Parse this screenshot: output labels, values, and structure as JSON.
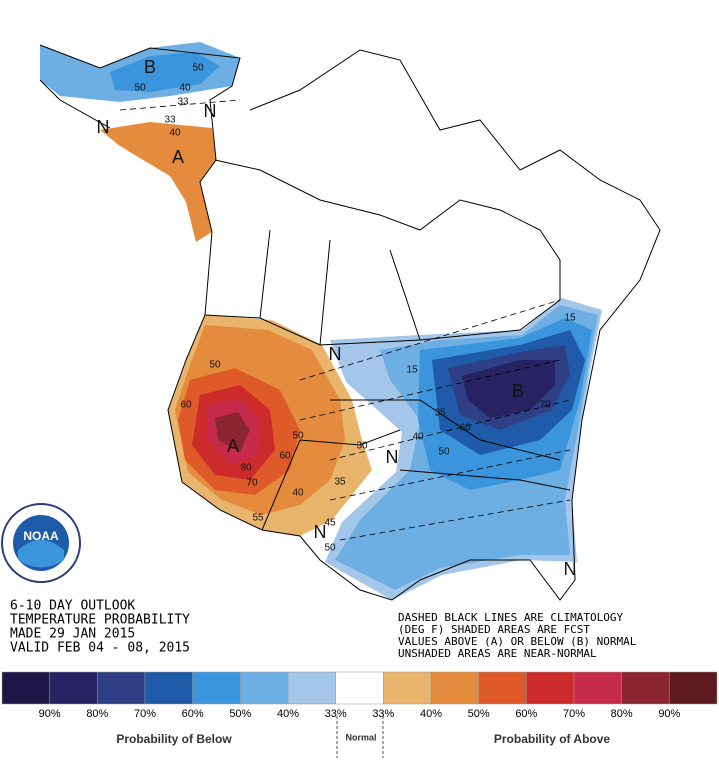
{
  "map": {
    "title_lines": [
      "6-10 DAY OUTLOOK",
      "TEMPERATURE PROBABILITY",
      "MADE  29 JAN 2015",
      "VALID  FEB 04 - 08, 2015"
    ],
    "note_lines": [
      "DASHED BLACK LINES ARE CLIMATOLOGY",
      "(DEG F) SHADED AREAS ARE FCST",
      "VALUES ABOVE (A) OR BELOW (B) NORMAL",
      "UNSHADED AREAS ARE NEAR-NORMAL"
    ],
    "logo": "NOAA",
    "labels": [
      "B",
      "50",
      "50",
      "40",
      "33",
      "N",
      "N",
      "33",
      "40",
      "A",
      "N",
      "50",
      "60",
      "A",
      "50",
      "60",
      "80",
      "70",
      "40",
      "35",
      "55",
      "30",
      "N",
      "N",
      "45",
      "50",
      "15",
      "15",
      "B",
      "35",
      "60",
      "50",
      "40",
      "70",
      "N"
    ]
  },
  "legend": {
    "colors": [
      "#1c1747",
      "#272261",
      "#2e3f86",
      "#1f5ba8",
      "#3a95dc",
      "#6daee3",
      "#a4c6e8",
      "#ffffff",
      "#e9b46b",
      "#e58b3e",
      "#de5a28",
      "#cd2b2b",
      "#c62b4b",
      "#8b2630",
      "#5e1b1f"
    ],
    "labels": [
      "90%",
      "80%",
      "70%",
      "60%",
      "50%",
      "40%",
      "33%",
      "33%",
      "40%",
      "50%",
      "60%",
      "70%",
      "80%",
      "90%"
    ],
    "below": "Probability of Below",
    "normal": "Normal",
    "above": "Probability of Above"
  }
}
